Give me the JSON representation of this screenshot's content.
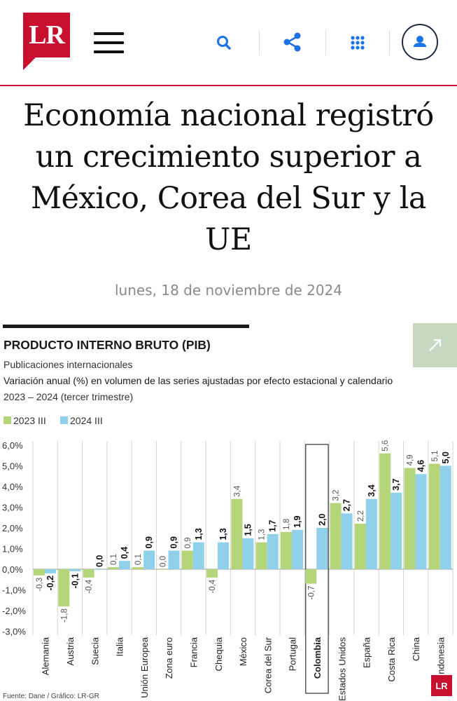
{
  "header": {
    "logo_text": "LR",
    "icons": [
      "menu-icon",
      "search-icon",
      "share-icon",
      "apps-grid-icon",
      "user-icon"
    ],
    "accent_color": "#c8102e",
    "icon_color": "#1a73e8"
  },
  "article": {
    "title": "Economía nacional registró un crecimiento superior a México, Corea del Sur y la UE",
    "date": "lunes, 18 de noviembre de 2024"
  },
  "infographic": {
    "heading": "PRODUCTO INTERNO BRUTO (PIB)",
    "subheading": "Publicaciones internacionales",
    "description": "Variación anual (%) en volumen de las series ajustadas por efecto estacional y calendario",
    "period": "2023 – 2024 (tercer trimestre)",
    "source": "Fuente: Dane / Gráfico: LR-GR",
    "badge": "LR"
  },
  "chart_data": {
    "type": "bar",
    "categories": [
      "Alemania",
      "Austria",
      "Suecia",
      "Italia",
      "Unión Europea",
      "Zona euro",
      "Francia",
      "Chequia",
      "México",
      "Corea del Sur",
      "Portugal",
      "Colombia",
      "Estados Unidos",
      "España",
      "Costa Rica",
      "China",
      "Indonesia"
    ],
    "series": [
      {
        "name": "2023 III",
        "color": "#b5d57a",
        "values": [
          -0.3,
          -1.8,
          -0.4,
          0.1,
          0.1,
          0.0,
          0.9,
          -0.4,
          3.4,
          1.3,
          1.8,
          -0.7,
          3.2,
          2.2,
          5.6,
          4.9,
          5.1
        ],
        "labels": [
          "-0,3",
          "-1,8",
          "-0,4",
          "0,1",
          "0,1",
          "0,0",
          "0,9",
          "-0,4",
          "3,4",
          "1,3",
          "1,8",
          "-0,7",
          "3,2",
          "2,2",
          "5,6",
          "4,9",
          "5,1"
        ]
      },
      {
        "name": "2024 III",
        "color": "#8fd0ea",
        "values": [
          -0.2,
          -0.1,
          0.0,
          0.4,
          0.9,
          0.9,
          1.3,
          1.3,
          1.5,
          1.7,
          1.9,
          2.0,
          2.7,
          3.4,
          3.7,
          4.6,
          5.0
        ],
        "labels": [
          "-0,2",
          "-0,1",
          "0,0",
          "0,4",
          "0,9",
          "0,9",
          "1,3",
          "1,3",
          "1,5",
          "1,7",
          "1,9",
          "2,0",
          "2,7",
          "3,4",
          "3,7",
          "4,6",
          "5,0"
        ]
      }
    ],
    "highlight_category": "Colombia",
    "yticks": [
      6,
      5,
      4,
      3,
      2,
      1,
      0,
      -1,
      -2,
      -3
    ],
    "ytick_labels": [
      "6,0%",
      "5,0%",
      "4,0%",
      "3,0%",
      "2,0%",
      "1,0%",
      "0,0%",
      "-1,0%",
      "-2,0%",
      "-3,0%"
    ],
    "ylim": [
      -3,
      6
    ],
    "grid": "vertical",
    "legend_position": "top-left"
  }
}
